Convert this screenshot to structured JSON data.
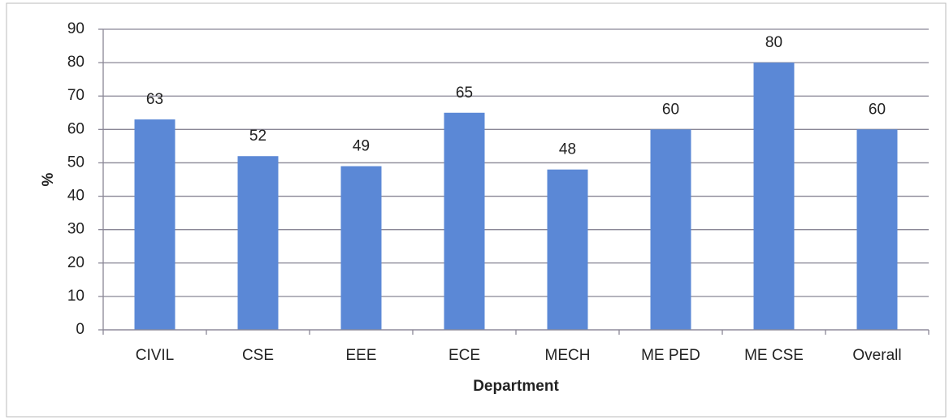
{
  "chart_data": {
    "type": "bar",
    "x_label": "Department",
    "y_label": "%",
    "categories": [
      "CIVIL",
      "CSE",
      "EEE",
      "ECE",
      "MECH",
      "ME PED",
      "ME CSE",
      "Overall"
    ],
    "values": [
      63,
      52,
      49,
      65,
      48,
      60,
      80,
      60
    ],
    "color": "#5b88d6",
    "ylim": [
      0,
      90
    ],
    "yticks": [
      0,
      10,
      20,
      30,
      40,
      50,
      60,
      70,
      80,
      90
    ],
    "grid": true
  }
}
